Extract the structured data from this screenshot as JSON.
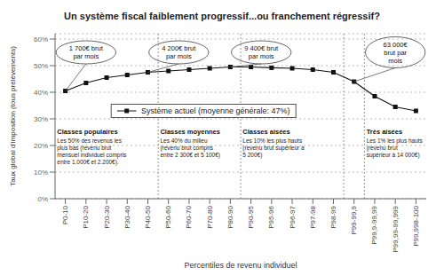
{
  "chart_data": {
    "type": "line",
    "title": "Un système fiscal faiblement progressif...ou franchement régressif?",
    "xlabel": "Percentiles de revenu individuel",
    "ylabel": "Taux global d'imposition (tous prélèvements)",
    "categories": [
      "P0-10",
      "P10-20",
      "P20-30",
      "P30-40",
      "P40-50",
      "P50-60",
      "P60-70",
      "P70-80",
      "P80-90",
      "P90-95",
      "P95-96",
      "P96-97",
      "P97-98",
      "P98-99",
      "P99-99,9",
      "P99,9-99,99",
      "P99,99-99,999",
      "P99,998-100"
    ],
    "series": [
      {
        "name": "Système actuel (moyenne générale: 47%)",
        "color": "#111111",
        "marker": "square",
        "values": [
          40.5,
          43.5,
          45.5,
          46.5,
          47.5,
          48.0,
          48.5,
          49.0,
          49.5,
          49.5,
          49.2,
          49.0,
          48.5,
          47.5,
          44.0,
          38.5,
          34.5,
          33.0
        ]
      }
    ],
    "ylim": [
      0,
      62
    ],
    "yticks": [
      {
        "value": 0,
        "label": "0%"
      },
      {
        "value": 10,
        "label": "10%"
      },
      {
        "value": 20,
        "label": "20%"
      },
      {
        "value": 30,
        "label": "30%"
      },
      {
        "value": 40,
        "label": "40%"
      },
      {
        "value": 50,
        "label": "50%"
      },
      {
        "value": 60,
        "label": "60%"
      }
    ],
    "grid": true,
    "boundaries": [
      "P50-60",
      "P90-95",
      "P99-99,9",
      "P99,9-99,99"
    ],
    "sections": [
      {
        "title": "Classes populaires",
        "text": "Les 50% des revenus les\nplus bas (revenu brut\nmensuel individuel compris\nentre 1.000€ et 2.200€).",
        "start": "P0-10"
      },
      {
        "title": "Classes moyennes",
        "text": "Les 40% du milieu\n(revenu brut compris\nentre 2 300€ et 5 100€)",
        "start": "P50-60"
      },
      {
        "title": "Classes aisées",
        "text": "Les 10% les plus hauts\n(revenu brut supérieur à\n5 200€)",
        "start": "P90-95"
      },
      {
        "title": "Très aisées",
        "text": "Les 1% les plus hauts\n(revenu brut\nsupérieur à 14 000€)",
        "start": "P99,9-99,99"
      }
    ],
    "annotations": [
      {
        "text": "1 700€ brut\npar mois",
        "category": "P0-10"
      },
      {
        "text": "4 200€ brut\npar mois",
        "category": "P40-50"
      },
      {
        "text": "9 400€ brut\npar mois",
        "category": "P80-90"
      },
      {
        "text": "63 000€\nbrut par\nmois",
        "category": "P99-99,9"
      }
    ]
  }
}
